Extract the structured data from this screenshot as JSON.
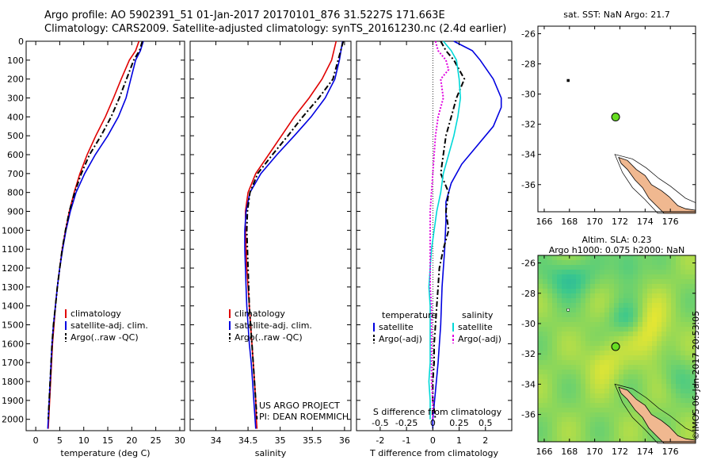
{
  "header": {
    "line1": "Argo profile: AO 5902391_51 01-Jan-2017 20170101_876 31.5227S 171.663E",
    "line2": "Climatology: CARS2009. Satellite-adjusted climatology: synTS_20161230.nc (2.4d earlier)"
  },
  "stamp": "©IMOS 06-Jan-2017 20:53:05",
  "colors": {
    "climatology": "#e00000",
    "satellite": "#0000e0",
    "argo": "#000000",
    "sal_satellite": "#00d8d8",
    "sal_argo": "#e000e0",
    "land": "#f0b890",
    "float_marker": "#66dd22"
  },
  "chart_data": [
    {
      "id": "temperature",
      "type": "line",
      "xlabel": "temperature (deg C)",
      "xlim": [
        -2,
        31
      ],
      "ylim": [
        0,
        2060
      ],
      "xticks": [
        0,
        5,
        10,
        15,
        20,
        25,
        30
      ],
      "yticks": [
        0,
        100,
        200,
        300,
        400,
        500,
        600,
        700,
        800,
        900,
        1000,
        1100,
        1200,
        1300,
        1400,
        1500,
        1600,
        1700,
        1800,
        1900,
        2000
      ],
      "legend": [
        "climatology",
        "satellite-adj. clim.",
        "Argo(..raw -QC)"
      ],
      "legend_placement": "lower-right",
      "series": [
        {
          "name": "climatology",
          "style": "solid",
          "points": [
            [
              21.5,
              0
            ],
            [
              20.8,
              50
            ],
            [
              19.5,
              100
            ],
            [
              17.8,
              200
            ],
            [
              16.2,
              300
            ],
            [
              14.5,
              400
            ],
            [
              12.5,
              500
            ],
            [
              10.7,
              600
            ],
            [
              9.2,
              700
            ],
            [
              8,
              800
            ],
            [
              7,
              900
            ],
            [
              6.2,
              1000
            ],
            [
              5.5,
              1100
            ],
            [
              5,
              1200
            ],
            [
              4.5,
              1300
            ],
            [
              4.1,
              1400
            ],
            [
              3.8,
              1500
            ],
            [
              3.5,
              1600
            ],
            [
              3.3,
              1700
            ],
            [
              3.1,
              1800
            ],
            [
              2.9,
              1900
            ],
            [
              2.7,
              2000
            ],
            [
              2.6,
              2050
            ]
          ]
        },
        {
          "name": "satellite-adj. clim.",
          "style": "solid",
          "points": [
            [
              22.4,
              0
            ],
            [
              21.8,
              50
            ],
            [
              20.8,
              100
            ],
            [
              19.8,
              200
            ],
            [
              18.8,
              300
            ],
            [
              17.2,
              400
            ],
            [
              15,
              500
            ],
            [
              12.4,
              600
            ],
            [
              10.2,
              700
            ],
            [
              8.4,
              800
            ],
            [
              7.2,
              900
            ],
            [
              6.3,
              1000
            ],
            [
              5.6,
              1100
            ],
            [
              5,
              1200
            ],
            [
              4.5,
              1300
            ],
            [
              4.1,
              1400
            ],
            [
              3.7,
              1500
            ],
            [
              3.4,
              1600
            ],
            [
              3.2,
              1700
            ],
            [
              3,
              1800
            ],
            [
              2.8,
              1900
            ],
            [
              2.6,
              2000
            ],
            [
              2.5,
              2050
            ]
          ]
        },
        {
          "name": "Argo(..raw -QC)",
          "style": "dashed",
          "points": [
            [
              22.2,
              0
            ],
            [
              21.6,
              50
            ],
            [
              20.4,
              100
            ],
            [
              18.9,
              200
            ],
            [
              17.4,
              300
            ],
            [
              15.7,
              400
            ],
            [
              13.6,
              500
            ],
            [
              11.2,
              600
            ],
            [
              9.5,
              700
            ],
            [
              8.1,
              800
            ],
            [
              7,
              900
            ],
            [
              6.2,
              1000
            ],
            [
              5.5,
              1100
            ],
            [
              5,
              1200
            ],
            [
              4.5,
              1300
            ],
            [
              4.1,
              1400
            ],
            [
              3.7,
              1500
            ],
            [
              3.4,
              1600
            ],
            [
              3.2,
              1700
            ],
            [
              3,
              1800
            ],
            [
              2.8,
              1900
            ],
            [
              2.6,
              2000
            ]
          ]
        }
      ]
    },
    {
      "id": "salinity",
      "type": "line",
      "xlabel": "salinity",
      "xlim": [
        33.6,
        36.1
      ],
      "ylim": [
        0,
        2060
      ],
      "xticks": [
        34,
        34.5,
        35,
        35.5,
        36
      ],
      "legend": [
        "climatology",
        "satellite-adj. clim.",
        "Argo(..raw -QC)"
      ],
      "legend_placement": "lower-right",
      "annotation": [
        "US ARGO PROJECT",
        "PI: DEAN ROEMMICH"
      ],
      "series": [
        {
          "name": "climatology",
          "style": "solid",
          "points": [
            [
              35.87,
              0
            ],
            [
              35.8,
              100
            ],
            [
              35.65,
              200
            ],
            [
              35.45,
              300
            ],
            [
              35.22,
              400
            ],
            [
              35.02,
              500
            ],
            [
              34.82,
              600
            ],
            [
              34.62,
              700
            ],
            [
              34.5,
              800
            ],
            [
              34.46,
              900
            ],
            [
              34.46,
              1000
            ],
            [
              34.47,
              1100
            ],
            [
              34.48,
              1200
            ],
            [
              34.5,
              1300
            ],
            [
              34.52,
              1400
            ],
            [
              34.54,
              1500
            ],
            [
              34.56,
              1600
            ],
            [
              34.58,
              1700
            ],
            [
              34.6,
              1800
            ],
            [
              34.62,
              1900
            ],
            [
              34.63,
              2000
            ],
            [
              34.64,
              2050
            ]
          ]
        },
        {
          "name": "satellite-adj. clim.",
          "style": "solid",
          "points": [
            [
              35.97,
              0
            ],
            [
              35.92,
              100
            ],
            [
              35.85,
              200
            ],
            [
              35.7,
              300
            ],
            [
              35.48,
              400
            ],
            [
              35.22,
              500
            ],
            [
              34.95,
              600
            ],
            [
              34.7,
              700
            ],
            [
              34.53,
              800
            ],
            [
              34.47,
              900
            ],
            [
              34.45,
              1000
            ],
            [
              34.45,
              1100
            ],
            [
              34.46,
              1200
            ],
            [
              34.47,
              1300
            ],
            [
              34.48,
              1400
            ],
            [
              34.5,
              1500
            ],
            [
              34.52,
              1600
            ],
            [
              34.55,
              1700
            ],
            [
              34.57,
              1800
            ],
            [
              34.59,
              1900
            ],
            [
              34.61,
              2000
            ],
            [
              34.62,
              2050
            ]
          ]
        },
        {
          "name": "Argo(..raw -QC)",
          "style": "dashed",
          "points": [
            [
              35.98,
              0
            ],
            [
              35.9,
              100
            ],
            [
              35.82,
              200
            ],
            [
              35.6,
              300
            ],
            [
              35.35,
              400
            ],
            [
              35.12,
              500
            ],
            [
              34.88,
              600
            ],
            [
              34.65,
              700
            ],
            [
              34.53,
              800
            ],
            [
              34.49,
              900
            ],
            [
              34.48,
              1000
            ],
            [
              34.49,
              1100
            ],
            [
              34.5,
              1200
            ],
            [
              34.51,
              1300
            ],
            [
              34.52,
              1400
            ],
            [
              34.54,
              1500
            ],
            [
              34.56,
              1600
            ],
            [
              34.58,
              1700
            ],
            [
              34.6,
              1800
            ],
            [
              34.62,
              1900
            ],
            [
              34.64,
              2000
            ]
          ]
        }
      ]
    },
    {
      "id": "difference",
      "type": "line",
      "xlabel": "T difference from climatology",
      "xlabel2": "S difference from climatology",
      "xlim": [
        -2.9,
        3.0
      ],
      "ylim": [
        0,
        2060
      ],
      "xticks": [
        -2,
        -1,
        0,
        1,
        2
      ],
      "xticks2": [
        "-0.5",
        "-0.25",
        "0",
        "0.25",
        "0.5"
      ],
      "xticks2_pos": [
        -2,
        -1,
        0,
        1,
        2
      ],
      "legend_headers": [
        "temperature",
        "salinity"
      ],
      "legend": [
        "satellite",
        "Argo(-adj)",
        "satellite",
        "Argo(-adj)"
      ],
      "legend_placement": "lower-center",
      "series": [
        {
          "name": "T satellite",
          "style": "solid",
          "points": [
            [
              0.8,
              0
            ],
            [
              1.5,
              50
            ],
            [
              1.8,
              100
            ],
            [
              2.3,
              200
            ],
            [
              2.6,
              300
            ],
            [
              2.6,
              350
            ],
            [
              2.3,
              450
            ],
            [
              1.7,
              550
            ],
            [
              1.1,
              650
            ],
            [
              0.7,
              750
            ],
            [
              0.5,
              850
            ],
            [
              0.5,
              950
            ],
            [
              0.45,
              1100
            ],
            [
              0.35,
              1300
            ],
            [
              0.3,
              1500
            ],
            [
              0.2,
              1700
            ],
            [
              0.1,
              1850
            ],
            [
              0,
              2000
            ],
            [
              0,
              2050
            ]
          ]
        },
        {
          "name": "T Argo(-adj)",
          "style": "dashed",
          "points": [
            [
              0.3,
              0
            ],
            [
              0.5,
              50
            ],
            [
              0.8,
              100
            ],
            [
              1.2,
              200
            ],
            [
              0.9,
              300
            ],
            [
              0.7,
              400
            ],
            [
              0.5,
              500
            ],
            [
              0.4,
              600
            ],
            [
              0.3,
              700
            ],
            [
              0.6,
              800
            ],
            [
              0.5,
              900
            ],
            [
              0.6,
              1000
            ],
            [
              0.4,
              1100
            ],
            [
              0.25,
              1200
            ],
            [
              0.2,
              1300
            ],
            [
              0.15,
              1400
            ],
            [
              0.1,
              1500
            ],
            [
              0.05,
              1600
            ],
            [
              0.05,
              1700
            ],
            [
              0,
              1800
            ],
            [
              0,
              1900
            ],
            [
              0.1,
              2000
            ]
          ]
        },
        {
          "name": "S satellite",
          "style": "solid",
          "points": [
            [
              0.4,
              0
            ],
            [
              0.7,
              50
            ],
            [
              0.9,
              100
            ],
            [
              1,
              200
            ],
            [
              1.05,
              300
            ],
            [
              0.95,
              400
            ],
            [
              0.8,
              500
            ],
            [
              0.6,
              600
            ],
            [
              0.4,
              700
            ],
            [
              0.3,
              800
            ],
            [
              0.15,
              900
            ],
            [
              0.05,
              1000
            ],
            [
              -0.05,
              1100
            ],
            [
              -0.1,
              1200
            ],
            [
              -0.15,
              1300
            ],
            [
              -0.1,
              1400
            ],
            [
              -0.1,
              1500
            ],
            [
              -0.1,
              1600
            ],
            [
              -0.1,
              1700
            ],
            [
              -0.15,
              1800
            ],
            [
              -0.1,
              1900
            ],
            [
              -0.1,
              2000
            ]
          ]
        },
        {
          "name": "S Argo(-adj)",
          "style": "dotted",
          "points": [
            [
              0.1,
              0
            ],
            [
              0.2,
              50
            ],
            [
              0.5,
              100
            ],
            [
              0.6,
              150
            ],
            [
              0.3,
              200
            ],
            [
              0.4,
              300
            ],
            [
              0.2,
              400
            ],
            [
              0.1,
              500
            ],
            [
              0.05,
              600
            ],
            [
              0,
              700
            ],
            [
              -0.05,
              800
            ],
            [
              -0.1,
              900
            ],
            [
              -0.1,
              1000
            ],
            [
              -0.1,
              1100
            ],
            [
              -0.1,
              1200
            ],
            [
              -0.1,
              1300
            ],
            [
              -0.05,
              1400
            ],
            [
              -0.05,
              1500
            ],
            [
              -0.05,
              1600
            ],
            [
              -0.05,
              1700
            ],
            [
              -0.05,
              1800
            ],
            [
              0,
              1900
            ],
            [
              0,
              2000
            ]
          ]
        }
      ]
    },
    {
      "id": "sst_map",
      "type": "map",
      "title": "sat. SST: NaN Argo: 21.7",
      "xlim": [
        165.5,
        178
      ],
      "ylim": [
        -37.8,
        -25.5
      ],
      "xticks": [
        166,
        168,
        170,
        172,
        174,
        176
      ],
      "yticks": [
        -26,
        -28,
        -30,
        -32,
        -34,
        -36
      ],
      "argo_position": [
        171.66,
        -31.52
      ],
      "prev_position": [
        167.9,
        -29.1
      ]
    },
    {
      "id": "sla_map",
      "type": "heatmap",
      "title": "Altim. SLA: 0.23",
      "subtitle": "Argo h1000: 0.075 h2000: NaN",
      "xlim": [
        165.5,
        178
      ],
      "ylim": [
        -37.8,
        -25.5
      ],
      "xticks": [
        166,
        168,
        170,
        172,
        174,
        176
      ],
      "yticks": [
        -26,
        -28,
        -30,
        -32,
        -34,
        -36
      ],
      "argo_position": [
        171.66,
        -31.52
      ],
      "prev_position": [
        167.9,
        -29.1
      ]
    }
  ]
}
